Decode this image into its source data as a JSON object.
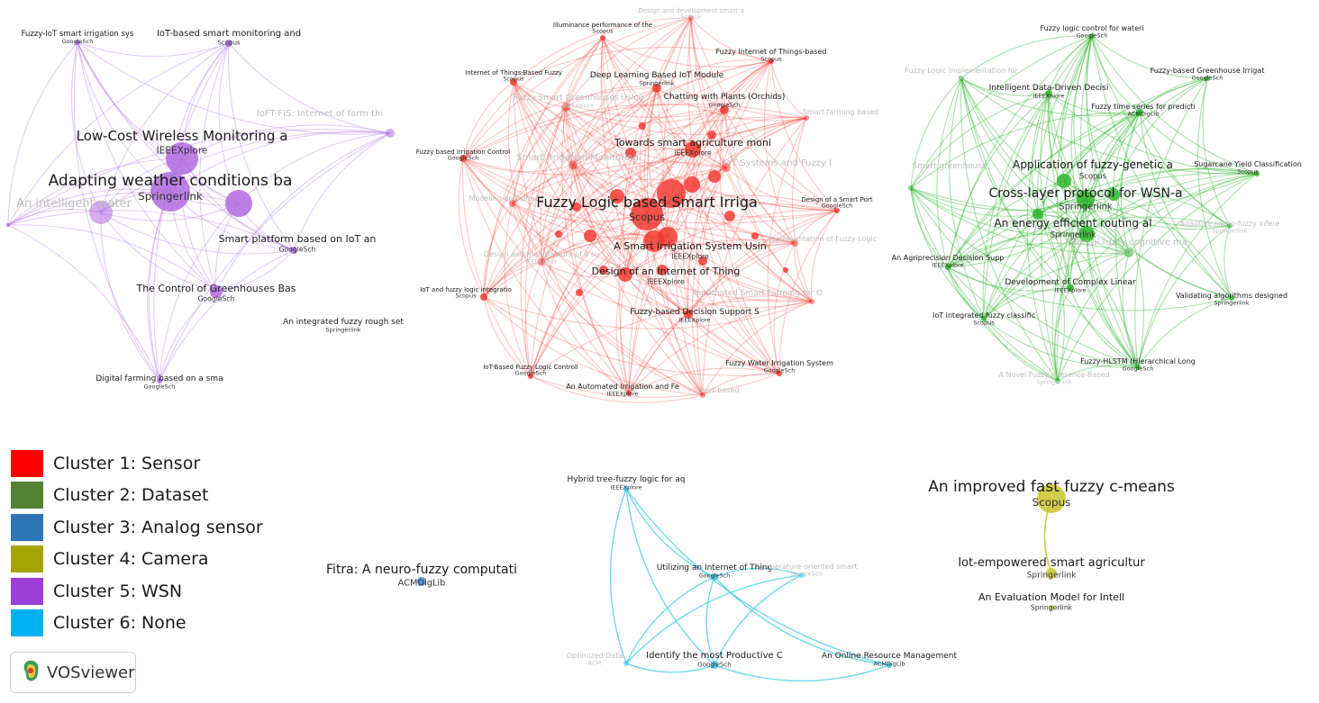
{
  "colors": {
    "sensor": "#f03b32",
    "dataset": "#2db52d",
    "wsn": "#b06ae0",
    "camera": "#c9c42a",
    "analog": "#3b86d6",
    "none": "#38c7e0"
  },
  "network": {
    "nodes": [
      {
        "id": "p1",
        "cluster": "wsn",
        "label": "Fuzzy-IoT smart irrigation sys",
        "source": "GoogleSch"
      },
      {
        "id": "p2",
        "cluster": "wsn",
        "label": "IoT-based smart monitoring and",
        "source": "Scopus"
      },
      {
        "id": "p3",
        "cluster": "wsn",
        "label": "IoFT-FIS: Internet of farm thi",
        "source": ""
      },
      {
        "id": "p4",
        "cluster": "wsn",
        "label": "Low-Cost Wireless Monitoring a",
        "source": "IEEEXplore"
      },
      {
        "id": "p5",
        "cluster": "wsn",
        "label": "Adapting weather conditions ba",
        "source": "Springerlink"
      },
      {
        "id": "p6",
        "cluster": "wsn",
        "label": "An intelligent water",
        "source": ""
      },
      {
        "id": "p7",
        "cluster": "wsn",
        "label": "Smart platform based on IoT an",
        "source": "GoogleSch"
      },
      {
        "id": "p8",
        "cluster": "wsn",
        "label": "The Control of Greenhouses Bas",
        "source": "GoogleSch"
      },
      {
        "id": "p9",
        "cluster": "wsn",
        "label": "An integrated fuzzy rough set",
        "source": "Springerlink"
      },
      {
        "id": "p10",
        "cluster": "wsn",
        "label": "Digital farming based on a sma",
        "source": "GoogleSch"
      },
      {
        "id": "r1",
        "cluster": "sensor",
        "label": "Design and development smart a",
        "source": "Scopus"
      },
      {
        "id": "r2",
        "cluster": "sensor",
        "label": "Illuminance performance of the",
        "source": "Scopus"
      },
      {
        "id": "r3",
        "cluster": "sensor",
        "label": "Fuzzy Internet of Things-based",
        "source": "Scopus"
      },
      {
        "id": "r4",
        "cluster": "sensor",
        "label": "Internet of Things-Based Fuzzy",
        "source": "Scopus"
      },
      {
        "id": "r5",
        "cluster": "sensor",
        "label": "Deep Learning Based IoT Module",
        "source": "Springerlink"
      },
      {
        "id": "r6",
        "cluster": "sensor",
        "label": "Fuzzy Smart Greenhouses Using",
        "source": "IEEEXplore"
      },
      {
        "id": "r7",
        "cluster": "sensor",
        "label": "Chatting with Plants (Orchids)",
        "source": "GoogleSch"
      },
      {
        "id": "r8",
        "cluster": "sensor",
        "label": "Smart farming based",
        "source": ""
      },
      {
        "id": "r9",
        "cluster": "sensor",
        "label": "Fuzzy based Irrigation Control",
        "source": "GoogleSch"
      },
      {
        "id": "r10",
        "cluster": "sensor",
        "label": "Smart Irrigation Monitoring",
        "source": ""
      },
      {
        "id": "r11",
        "cluster": "sensor",
        "label": "Towards smart agriculture moni",
        "source": "IEEEXplore"
      },
      {
        "id": "r12",
        "cluster": "sensor",
        "label": "IoT Systems and Fuzzy I",
        "source": ""
      },
      {
        "id": "r13",
        "cluster": "sensor",
        "label": "Design of a Smart Port",
        "source": "GoogleSch"
      },
      {
        "id": "r14",
        "cluster": "sensor",
        "label": "Modeling and simula",
        "source": ""
      },
      {
        "id": "r15",
        "cluster": "sensor",
        "label": "Fuzzy Logic based Smart Irriga",
        "source": "Scopus"
      },
      {
        "id": "r16",
        "cluster": "sensor",
        "label": "Implementation of Fuzzy Logic",
        "source": ""
      },
      {
        "id": "r17",
        "cluster": "sensor",
        "label": "A Smart Irrigation System Usin",
        "source": "IEEEXplore"
      },
      {
        "id": "r18",
        "cluster": "sensor",
        "label": "Design and manufacture of a su",
        "source": "IEEEXplore"
      },
      {
        "id": "r19",
        "cluster": "sensor",
        "label": "Design of an Internet of Thing",
        "source": "IEEEXplore"
      },
      {
        "id": "r20",
        "cluster": "sensor",
        "label": "IoT and fuzzy logic integratio",
        "source": "Scopus"
      },
      {
        "id": "r21",
        "cluster": "sensor",
        "label": "Automated Smart Farming for O",
        "source": ""
      },
      {
        "id": "r22",
        "cluster": "sensor",
        "label": "Fuzzy-based Decision Support S",
        "source": "IEEEXplore"
      },
      {
        "id": "r23",
        "cluster": "sensor",
        "label": "IoT-Based Fuzzy Logic Controll",
        "source": "GoogleSch"
      },
      {
        "id": "r24",
        "cluster": "sensor",
        "label": "Fuzzy Water Irrigation System",
        "source": "GoogleSch"
      },
      {
        "id": "r25",
        "cluster": "sensor",
        "label": "An Automated Irrigation and Fe",
        "source": "IEEEXplore"
      },
      {
        "id": "r26",
        "cluster": "sensor",
        "label": "Smart based",
        "source": ""
      },
      {
        "id": "g1",
        "cluster": "dataset",
        "label": "Fuzzy logic control for wateri",
        "source": "GoogleSch"
      },
      {
        "id": "g2",
        "cluster": "dataset",
        "label": "Fuzzy Logic Implementation for",
        "source": "Sc"
      },
      {
        "id": "g3",
        "cluster": "dataset",
        "label": "Fuzzy-based Greenhouse Irrigat",
        "source": "GoogleSch"
      },
      {
        "id": "g4",
        "cluster": "dataset",
        "label": "Intelligent Data-Driven Decisi",
        "source": "IEEEXplore"
      },
      {
        "id": "g5",
        "cluster": "dataset",
        "label": "Fuzzy time series for predicti",
        "source": "ACMDigLib"
      },
      {
        "id": "g6",
        "cluster": "dataset",
        "label": "Smart greenhouse",
        "source": ""
      },
      {
        "id": "g7",
        "cluster": "dataset",
        "label": "Application of fuzzy-genetic a",
        "source": "Scopus"
      },
      {
        "id": "g8",
        "cluster": "dataset",
        "label": "Sugarcane Yield Classification",
        "source": "Scopus"
      },
      {
        "id": "g9",
        "cluster": "dataset",
        "label": "Cross-layer protocol for WSN-a",
        "source": "Springerlink"
      },
      {
        "id": "g10",
        "cluster": "dataset",
        "label": "An energy efficient routing al",
        "source": "Springerlink"
      },
      {
        "id": "g11",
        "cluster": "dataset",
        "label": "Adaptive neuro-fuzzy infere",
        "source": "Springerlink"
      },
      {
        "id": "g12",
        "cluster": "dataset",
        "label": "Interval fuzzy cognitive ma",
        "source": "Scopus"
      },
      {
        "id": "g13",
        "cluster": "dataset",
        "label": "An Agriprecision Decision Supp",
        "source": "IEEEXplore"
      },
      {
        "id": "g14",
        "cluster": "dataset",
        "label": "Development of Complex Linear",
        "source": "IEEEXplore"
      },
      {
        "id": "g15",
        "cluster": "dataset",
        "label": "Validating algorithms designed",
        "source": "Springerlink"
      },
      {
        "id": "g16",
        "cluster": "dataset",
        "label": "IoT integrated fuzzy classific",
        "source": "Scopus"
      },
      {
        "id": "g17",
        "cluster": "dataset",
        "label": "Fuzzy-HLSTM (Hierarchical Long",
        "source": "GoogleSch"
      },
      {
        "id": "g18",
        "cluster": "dataset",
        "label": "A Novel Fuzzy Inference-Based",
        "source": "Springerlink"
      },
      {
        "id": "a1",
        "cluster": "analog",
        "label": "Fitra: A neuro-fuzzy computati",
        "source": "ACMDigLib"
      },
      {
        "id": "c1",
        "cluster": "none",
        "label": "Hybrid tree-fuzzy logic for aq",
        "source": "IEEEXplore"
      },
      {
        "id": "c2",
        "cluster": "none",
        "label": "Utilizing an Internet of Thing",
        "source": "GoogleSch"
      },
      {
        "id": "c3",
        "cluster": "none",
        "label": "Temperature-oriented smart",
        "source": "GoogleSch"
      },
      {
        "id": "c4",
        "cluster": "none",
        "label": "Optimized Data",
        "source": "ACM"
      },
      {
        "id": "c5",
        "cluster": "none",
        "label": "Identify the most Productive C",
        "source": "GoogleSch"
      },
      {
        "id": "c6",
        "cluster": "none",
        "label": "An Online Resource Management",
        "source": "ACMDigLib"
      },
      {
        "id": "y1",
        "cluster": "camera",
        "label": "An improved fast fuzzy c-means",
        "source": "Scopus"
      },
      {
        "id": "y2",
        "cluster": "camera",
        "label": "Iot-empowered smart agricultur",
        "source": "Springerlink"
      },
      {
        "id": "y3",
        "cluster": "camera",
        "label": "An Evaluation Model for Intell",
        "source": "Springerlink"
      }
    ]
  },
  "legend": {
    "items": [
      {
        "label": "Cluster 1: Sensor",
        "color": "#ff0000"
      },
      {
        "label": "Cluster 2: Dataset",
        "color": "#548235"
      },
      {
        "label": "Cluster 3: Analog sensor",
        "color": "#2e75b6"
      },
      {
        "label": "Cluster 4: Camera",
        "color": "#a5a500"
      },
      {
        "label": "Cluster 5: WSN",
        "color": "#9b3fd6"
      },
      {
        "label": "Cluster 6: None",
        "color": "#00b0f0"
      }
    ]
  },
  "brand": {
    "name": "VOSviewer",
    "icon": "vosviewer-logo-icon"
  }
}
